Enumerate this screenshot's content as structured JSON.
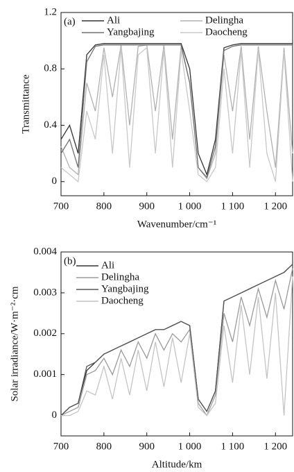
{
  "chart_data": [
    {
      "type": "line",
      "panel_label": "(a)",
      "x_label": "Wavenumber/cm⁻¹",
      "y_label": "Transmittance",
      "x": [
        700,
        720,
        740,
        760,
        780,
        800,
        820,
        840,
        860,
        880,
        900,
        920,
        940,
        960,
        980,
        1000,
        1020,
        1040,
        1060,
        1080,
        1100,
        1120,
        1140,
        1160,
        1180,
        1200,
        1220,
        1240
      ],
      "xlim": [
        700,
        1240
      ],
      "ylim": [
        -0.1,
        1.2
      ],
      "xticks": [
        700,
        800,
        900,
        {
          "value": 1000,
          "label": "1 000"
        },
        {
          "value": 1100,
          "label": "1 100"
        },
        {
          "value": 1200,
          "label": "1 200"
        }
      ],
      "yticks": [
        0,
        0.4,
        0.8,
        1.2
      ],
      "legend_columns": 2,
      "series": [
        {
          "name": "Ali",
          "color": "#333333",
          "values": [
            0.3,
            0.4,
            0.2,
            0.9,
            0.97,
            0.98,
            0.98,
            0.98,
            0.98,
            0.98,
            0.98,
            0.98,
            0.98,
            0.98,
            0.98,
            0.8,
            0.2,
            0.05,
            0.3,
            0.95,
            0.97,
            0.98,
            0.98,
            0.98,
            0.98,
            0.98,
            0.98,
            0.98
          ]
        },
        {
          "name": "Delingha",
          "color": "#b0b0b0",
          "values": [
            0.25,
            0.1,
            0.05,
            0.7,
            0.5,
            0.95,
            0.6,
            0.97,
            0.4,
            0.96,
            0.97,
            0.5,
            0.97,
            0.3,
            0.96,
            0.7,
            0.1,
            0.02,
            0.2,
            0.9,
            0.5,
            0.96,
            0.3,
            0.96,
            0.5,
            0.1,
            0.95,
            0.2
          ]
        },
        {
          "name": "Yangbajing",
          "color": "#707070",
          "values": [
            0.2,
            0.3,
            0.1,
            0.85,
            0.96,
            0.97,
            0.97,
            0.97,
            0.97,
            0.97,
            0.97,
            0.97,
            0.97,
            0.97,
            0.97,
            0.7,
            0.1,
            0.03,
            0.25,
            0.93,
            0.96,
            0.97,
            0.97,
            0.97,
            0.97,
            0.97,
            0.97,
            0.97
          ]
        },
        {
          "name": "Daocheng",
          "color": "#c8c8c8",
          "values": [
            0.1,
            0.05,
            0.0,
            0.5,
            0.3,
            0.9,
            0.2,
            0.95,
            0.1,
            0.9,
            0.95,
            0.2,
            0.94,
            0.1,
            0.93,
            0.5,
            0.05,
            0.0,
            0.1,
            0.8,
            0.2,
            0.93,
            0.1,
            0.94,
            0.2,
            0.0,
            0.92,
            0.0
          ]
        }
      ]
    },
    {
      "type": "line",
      "panel_label": "(b)",
      "x_label": "Altitude/km",
      "y_label": "Solar irradiance/W·m⁻²·cm",
      "x": [
        700,
        720,
        740,
        760,
        780,
        800,
        820,
        840,
        860,
        880,
        900,
        920,
        940,
        960,
        980,
        1000,
        1020,
        1040,
        1060,
        1080,
        1100,
        1120,
        1140,
        1160,
        1180,
        1200,
        1220,
        1240
      ],
      "xlim": [
        700,
        1240
      ],
      "ylim": [
        -0.0005,
        0.004
      ],
      "xticks": [
        700,
        800,
        900,
        {
          "value": 1000,
          "label": "1 000"
        },
        {
          "value": 1100,
          "label": "1 100"
        },
        {
          "value": 1200,
          "label": "1 200"
        }
      ],
      "yticks": [
        0,
        0.001,
        0.002,
        0.003,
        0.004
      ],
      "legend_columns": 1,
      "series": [
        {
          "name": "Ali",
          "color": "#333333",
          "values": [
            0,
            0.0002,
            0.0003,
            0.0011,
            0.0013,
            0.0015,
            0.0016,
            0.0017,
            0.0018,
            0.0019,
            0.002,
            0.0021,
            0.0021,
            0.0022,
            0.0023,
            0.0022,
            0.0004,
            0.0001,
            0.0006,
            0.0028,
            0.0029,
            0.003,
            0.0031,
            0.0032,
            0.0033,
            0.0034,
            0.0035,
            0.0037
          ]
        },
        {
          "name": "Delingha",
          "color": "#9a9a9a",
          "values": [
            0,
            0.0001,
            0.0002,
            0.001,
            0.0011,
            0.0014,
            0.001,
            0.0016,
            0.0012,
            0.0018,
            0.0014,
            0.002,
            0.0016,
            0.002,
            0.0018,
            0.0021,
            0.0003,
            0,
            0.0005,
            0.0025,
            0.0018,
            0.0029,
            0.0022,
            0.0031,
            0.0024,
            0.0033,
            0.0026,
            0.0036
          ]
        },
        {
          "name": "Yangbajing",
          "color": "#555555",
          "values": [
            0,
            0.0002,
            0.0003,
            0.0012,
            0.0013,
            0.0015,
            0.0016,
            0.0017,
            0.0018,
            0.0019,
            0.002,
            0.0021,
            0.0021,
            0.0022,
            0.0023,
            0.0022,
            0.0004,
            0.0001,
            0.0006,
            0.0028,
            0.0029,
            0.003,
            0.0031,
            0.0032,
            0.0033,
            0.0034,
            0.0035,
            0.0037
          ]
        },
        {
          "name": "Daocheng",
          "color": "#c4c4c4",
          "values": [
            0,
            0,
            0.0001,
            0.0006,
            0.0005,
            0.0012,
            0.0004,
            0.0014,
            0.0005,
            0.0016,
            0.0006,
            0.0018,
            0.0007,
            0.0019,
            0.0008,
            0.002,
            0.0002,
            0,
            0.0003,
            0.0022,
            0.0008,
            0.0027,
            0.001,
            0.0029,
            0.0009,
            0.003,
            0,
            0.0034
          ]
        }
      ]
    }
  ]
}
